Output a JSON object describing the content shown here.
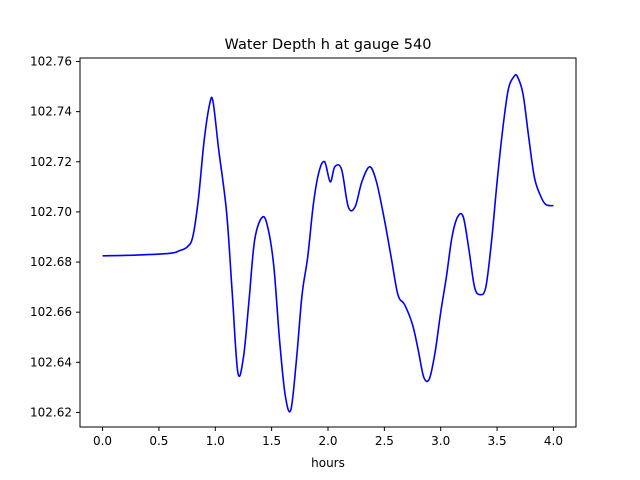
{
  "chart_data": {
    "type": "line",
    "title": "Water Depth h at gauge 540",
    "xlabel": "hours",
    "ylabel": "",
    "xlim": [
      -0.2,
      4.2
    ],
    "ylim": [
      102.6142,
      102.7614
    ],
    "xticks": [
      0.0,
      0.5,
      1.0,
      1.5,
      2.0,
      2.5,
      3.0,
      3.5,
      4.0
    ],
    "xtick_labels": [
      "0.0",
      "0.5",
      "1.0",
      "1.5",
      "2.0",
      "2.5",
      "3.0",
      "3.5",
      "4.0"
    ],
    "yticks": [
      102.62,
      102.64,
      102.66,
      102.68,
      102.7,
      102.72,
      102.74,
      102.76
    ],
    "ytick_labels": [
      "102.62",
      "102.64",
      "102.66",
      "102.68",
      "102.70",
      "102.72",
      "102.74",
      "102.76"
    ],
    "grid": false,
    "line_color": "#0000ff",
    "series": [
      {
        "x": [
          0.0,
          0.3,
          0.6,
          0.68,
          0.75,
          0.8,
          0.85,
          0.9,
          0.95,
          0.98,
          1.03,
          1.1,
          1.15,
          1.2,
          1.25,
          1.3,
          1.35,
          1.42,
          1.47,
          1.52,
          1.57,
          1.62,
          1.67,
          1.72,
          1.77,
          1.82,
          1.87,
          1.92,
          1.97,
          2.02,
          2.06,
          2.12,
          2.18,
          2.24,
          2.3,
          2.37,
          2.43,
          2.5,
          2.56,
          2.62,
          2.68,
          2.75,
          2.8,
          2.85,
          2.9,
          2.95,
          3.0,
          3.05,
          3.1,
          3.15,
          3.2,
          3.25,
          3.3,
          3.35,
          3.4,
          3.45,
          3.5,
          3.55,
          3.6,
          3.65,
          3.68,
          3.73,
          3.78,
          3.83,
          3.88,
          3.93,
          4.0
        ],
        "y": [
          102.6825,
          102.6828,
          102.6835,
          102.6845,
          102.686,
          102.69,
          102.705,
          102.728,
          102.743,
          102.744,
          102.725,
          102.7,
          102.668,
          102.636,
          102.642,
          102.665,
          102.689,
          102.698,
          102.693,
          102.678,
          102.649,
          102.627,
          102.621,
          102.641,
          102.667,
          102.682,
          102.703,
          102.716,
          102.72,
          102.712,
          102.718,
          102.717,
          102.702,
          102.702,
          102.712,
          102.718,
          102.712,
          102.697,
          102.682,
          102.667,
          102.663,
          102.655,
          102.645,
          102.634,
          102.6335,
          102.644,
          102.66,
          102.674,
          102.69,
          102.698,
          102.698,
          102.685,
          102.67,
          102.667,
          102.67,
          102.688,
          102.712,
          102.733,
          102.749,
          102.754,
          102.754,
          102.747,
          102.73,
          102.714,
          102.707,
          102.703,
          102.7025
        ]
      }
    ]
  }
}
